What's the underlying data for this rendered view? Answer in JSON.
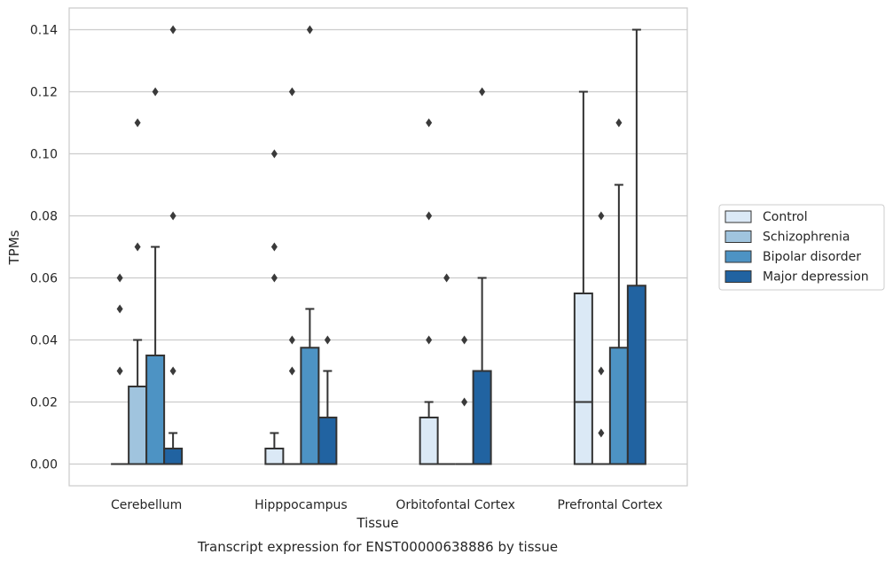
{
  "chart_data": {
    "type": "box",
    "title": "",
    "caption": "Transcript expression for ENST00000638886 by tissue",
    "xlabel": "Tissue",
    "ylabel": "TPMs",
    "ylim": [
      -0.007,
      0.147
    ],
    "yticks": [
      0.0,
      0.02,
      0.04,
      0.06,
      0.08,
      0.1,
      0.12,
      0.14
    ],
    "ytick_labels": [
      "0.00",
      "0.02",
      "0.04",
      "0.06",
      "0.08",
      "0.10",
      "0.12",
      "0.14"
    ],
    "grid": "horizontal",
    "legend_position": "right",
    "categories": [
      "Cerebellum",
      "Hipppocampus",
      "Orbitofontal Cortex",
      "Prefrontal Cortex"
    ],
    "series": [
      {
        "name": "Control",
        "color": "#dbe9f6",
        "boxes": [
          {
            "q1": 0.0,
            "median": 0.0,
            "q3": 0.0,
            "whisker_low": 0.0,
            "whisker_high": 0.0,
            "outliers": [
              0.03,
              0.05,
              0.06
            ]
          },
          {
            "q1": 0.0,
            "median": 0.0,
            "q3": 0.005,
            "whisker_low": 0.0,
            "whisker_high": 0.01,
            "outliers": [
              0.06,
              0.07,
              0.1
            ]
          },
          {
            "q1": 0.0,
            "median": 0.0,
            "q3": 0.015,
            "whisker_low": 0.0,
            "whisker_high": 0.02,
            "outliers": [
              0.04,
              0.08,
              0.11
            ]
          },
          {
            "q1": 0.0,
            "median": 0.02,
            "q3": 0.055,
            "whisker_low": 0.0,
            "whisker_high": 0.12,
            "outliers": []
          }
        ]
      },
      {
        "name": "Schizophrenia",
        "color": "#a0c4de",
        "boxes": [
          {
            "q1": 0.0,
            "median": 0.0,
            "q3": 0.025,
            "whisker_low": 0.0,
            "whisker_high": 0.04,
            "outliers": [
              0.07,
              0.11
            ]
          },
          {
            "q1": 0.0,
            "median": 0.0,
            "q3": 0.0,
            "whisker_low": 0.0,
            "whisker_high": 0.0,
            "outliers": [
              0.03,
              0.04,
              0.12
            ]
          },
          {
            "q1": 0.0,
            "median": 0.0,
            "q3": 0.0,
            "whisker_low": 0.0,
            "whisker_high": 0.0,
            "outliers": [
              0.06
            ]
          },
          {
            "q1": 0.0,
            "median": 0.0,
            "q3": 0.0,
            "whisker_low": 0.0,
            "whisker_high": 0.0,
            "outliers": [
              0.01,
              0.03,
              0.08
            ]
          }
        ]
      },
      {
        "name": "Bipolar disorder",
        "color": "#4d93c4",
        "boxes": [
          {
            "q1": 0.0,
            "median": 0.0,
            "q3": 0.035,
            "whisker_low": 0.0,
            "whisker_high": 0.07,
            "outliers": [
              0.12
            ]
          },
          {
            "q1": 0.0,
            "median": 0.0,
            "q3": 0.0375,
            "whisker_low": 0.0,
            "whisker_high": 0.05,
            "outliers": [
              0.14
            ]
          },
          {
            "q1": 0.0,
            "median": 0.0,
            "q3": 0.0,
            "whisker_low": 0.0,
            "whisker_high": 0.0,
            "outliers": [
              0.02,
              0.04
            ]
          },
          {
            "q1": 0.0,
            "median": 0.0,
            "q3": 0.0375,
            "whisker_low": 0.0,
            "whisker_high": 0.09,
            "outliers": [
              0.11
            ]
          }
        ]
      },
      {
        "name": "Major depression",
        "color": "#2163a1",
        "boxes": [
          {
            "q1": 0.0,
            "median": 0.0,
            "q3": 0.005,
            "whisker_low": 0.0,
            "whisker_high": 0.01,
            "outliers": [
              0.03,
              0.08,
              0.14
            ]
          },
          {
            "q1": 0.0,
            "median": 0.0,
            "q3": 0.015,
            "whisker_low": 0.0,
            "whisker_high": 0.03,
            "outliers": [
              0.04
            ]
          },
          {
            "q1": 0.0,
            "median": 0.0,
            "q3": 0.03,
            "whisker_low": 0.0,
            "whisker_high": 0.06,
            "outliers": [
              0.12
            ]
          },
          {
            "q1": 0.0,
            "median": 0.0,
            "q3": 0.0575,
            "whisker_low": 0.0,
            "whisker_high": 0.14,
            "outliers": []
          }
        ]
      }
    ]
  }
}
